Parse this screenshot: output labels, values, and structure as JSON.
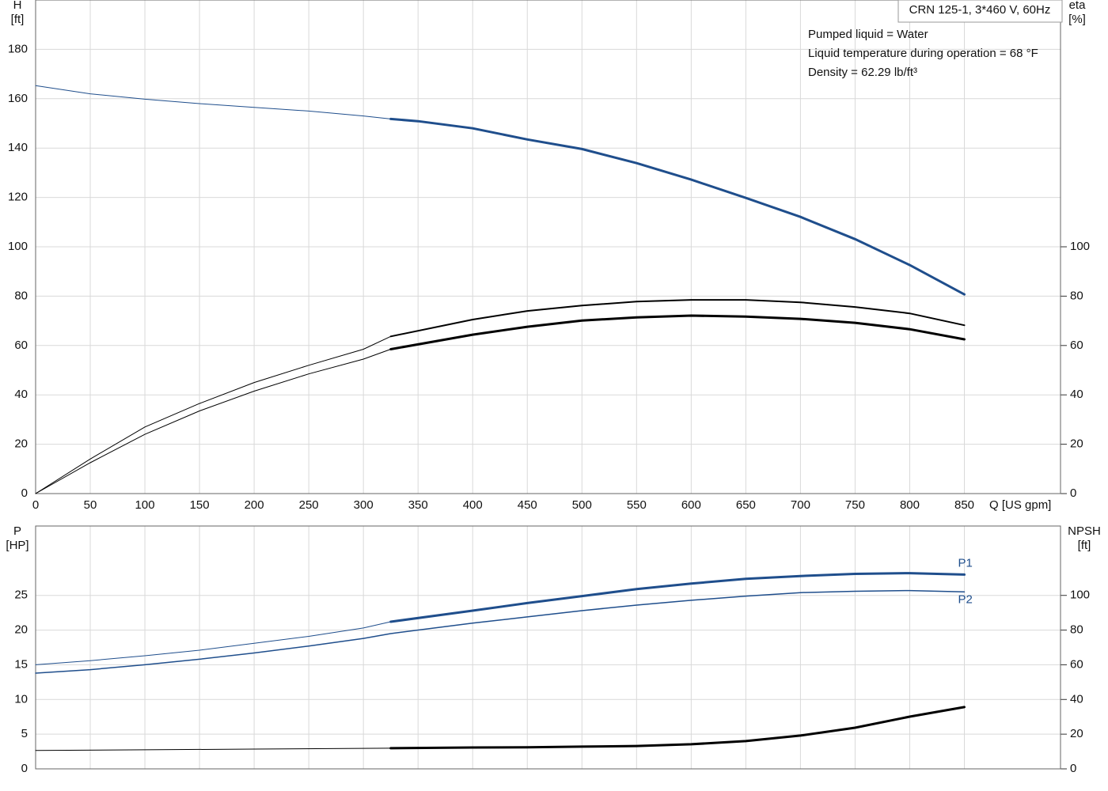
{
  "chart_data": [
    {
      "type": "line",
      "title": "CRN 125-1, 3*460 V, 60Hz",
      "annotations": [
        "Pumped liquid = Water",
        "Liquid temperature during operation = 68 °F",
        "Density = 62.29 lb/ft³"
      ],
      "x_label": "Q [US gpm]",
      "y_label": "H",
      "y_unit": "[ft]",
      "y2_label": "eta",
      "y2_unit": "[%]",
      "xlim": [
        0,
        938
      ],
      "xticks": [
        0,
        50,
        100,
        150,
        200,
        250,
        300,
        350,
        400,
        450,
        500,
        550,
        600,
        650,
        700,
        750,
        800,
        850
      ],
      "ylim": [
        0,
        200
      ],
      "yticks": [
        0,
        20,
        40,
        60,
        80,
        100,
        120,
        140,
        160,
        180
      ],
      "y2lim": [
        0,
        200
      ],
      "y2ticks": [
        0,
        20,
        40,
        60,
        80,
        100
      ],
      "grid": true,
      "xtick_labels": true,
      "series": [
        {
          "color": "#1f4e8c",
          "width": 1,
          "x": [
            0,
            50,
            100,
            150,
            200,
            250,
            300,
            325
          ],
          "values": [
            165.3,
            162,
            159.8,
            158,
            156.5,
            155,
            153,
            151.8
          ]
        },
        {
          "color": "#1f4e8c",
          "width": 3,
          "x": [
            325,
            350,
            400,
            450,
            500,
            550,
            600,
            650,
            700,
            750,
            800,
            850
          ],
          "values": [
            151.8,
            150.9,
            148,
            143.5,
            139.6,
            133.9,
            127.2,
            119.8,
            112.1,
            103.1,
            92.6,
            80.7
          ]
        },
        {
          "color": "#000000",
          "width": 1,
          "axis": "y2",
          "x": [
            0,
            50,
            100,
            150,
            200,
            250,
            300,
            325
          ],
          "values": [
            0,
            14,
            27,
            36.5,
            45,
            52,
            58.5,
            63.7
          ]
        },
        {
          "color": "#000000",
          "width": 2,
          "axis": "y2",
          "x": [
            325,
            400,
            450,
            500,
            550,
            600,
            650,
            700,
            750,
            800,
            850
          ],
          "values": [
            63.7,
            70.5,
            74,
            76.2,
            77.8,
            78.5,
            78.5,
            77.5,
            75.6,
            73,
            68.2
          ]
        },
        {
          "color": "#000000",
          "width": 1,
          "axis": "y2",
          "x": [
            0,
            50,
            100,
            150,
            200,
            250,
            300,
            325
          ],
          "values": [
            0,
            12.5,
            24,
            33.5,
            41.5,
            48.5,
            54.5,
            58.5
          ]
        },
        {
          "color": "#000000",
          "width": 3,
          "axis": "y2",
          "x": [
            325,
            400,
            450,
            500,
            550,
            600,
            650,
            700,
            750,
            800,
            850
          ],
          "values": [
            58.5,
            64.4,
            67.6,
            70.1,
            71.4,
            72.1,
            71.7,
            70.8,
            69.2,
            66.6,
            62.5
          ]
        }
      ]
    },
    {
      "type": "line",
      "y_label": "P",
      "y_unit": "[HP]",
      "y2_label": "NPSH",
      "y2_unit": "[ft]",
      "xlim": [
        0,
        938
      ],
      "xticks": [
        0,
        50,
        100,
        150,
        200,
        250,
        300,
        350,
        400,
        450,
        500,
        550,
        600,
        650,
        700,
        750,
        800,
        850
      ],
      "ylim": [
        0,
        35
      ],
      "yticks": [
        0,
        5,
        10,
        15,
        20,
        25
      ],
      "y2lim": [
        0,
        140
      ],
      "y2ticks": [
        0,
        20,
        40,
        60,
        80,
        100
      ],
      "grid": true,
      "xtick_labels": false,
      "series": [
        {
          "color": "#1f4e8c",
          "width": 1,
          "x": [
            0,
            50,
            100,
            150,
            200,
            250,
            300,
            325
          ],
          "values": [
            15,
            15.6,
            16.3,
            17.1,
            18.1,
            19.1,
            20.3,
            21.2
          ]
        },
        {
          "name": "P1",
          "color": "#1f4e8c",
          "width": 3,
          "x": [
            325,
            400,
            450,
            500,
            550,
            600,
            650,
            700,
            750,
            800,
            850
          ],
          "values": [
            21.2,
            22.8,
            23.9,
            24.9,
            25.9,
            26.7,
            27.4,
            27.8,
            28.1,
            28.2,
            28
          ]
        },
        {
          "name": "P2",
          "color": "#1f4e8c",
          "width": 1.5,
          "x": [
            0,
            50,
            100,
            150,
            200,
            250,
            300,
            325,
            400,
            450,
            500,
            550,
            600,
            650,
            700,
            750,
            800,
            850
          ],
          "values": [
            13.8,
            14.3,
            15,
            15.8,
            16.7,
            17.7,
            18.8,
            19.5,
            21,
            21.9,
            22.8,
            23.6,
            24.3,
            24.9,
            25.4,
            25.6,
            25.7,
            25.5
          ]
        },
        {
          "color": "#000000",
          "width": 1,
          "axis": "y2",
          "x": [
            0,
            100,
            200,
            325
          ],
          "values": [
            10.6,
            11,
            11.4,
            11.9
          ]
        },
        {
          "color": "#000000",
          "width": 3,
          "axis": "y2",
          "x": [
            325,
            400,
            450,
            500,
            550,
            600,
            650,
            700,
            750,
            800,
            850
          ],
          "values": [
            11.9,
            12.3,
            12.4,
            12.8,
            13.2,
            14.2,
            16,
            19.2,
            23.7,
            30.1,
            35.6
          ]
        }
      ]
    }
  ]
}
